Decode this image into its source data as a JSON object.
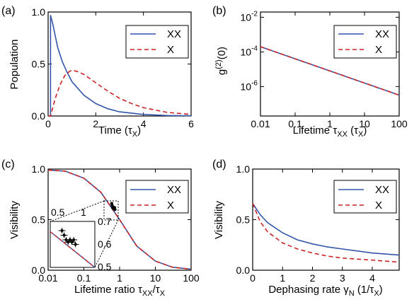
{
  "colors": {
    "xx": "#3355aa",
    "x": "#cc2222"
  },
  "chart_data": [
    {
      "panel": "(a)",
      "type": "line",
      "xlabel": "Time (τ_X)",
      "ylabel": "Population",
      "xlim": [
        0,
        6
      ],
      "ylim": [
        0,
        1
      ],
      "xticks": [
        "0",
        "2",
        "4",
        "6"
      ],
      "yticks": [
        "0.0",
        "0.5",
        "1.0"
      ],
      "xscale": "linear",
      "yscale": "linear",
      "legend": "top-right",
      "series": [
        {
          "name": "XX",
          "style": "solid",
          "x": [
            0,
            0.1,
            0.1,
            0.2,
            0.4,
            0.6,
            0.8,
            1.0,
            1.5,
            2.0,
            2.5,
            3.0,
            4.0,
            5.0,
            6.0
          ],
          "y": [
            0,
            0,
            0.97,
            0.88,
            0.66,
            0.52,
            0.42,
            0.33,
            0.2,
            0.12,
            0.07,
            0.04,
            0.015,
            0.005,
            0.002
          ]
        },
        {
          "name": "X",
          "style": "dashed",
          "x": [
            0,
            0.1,
            0.3,
            0.5,
            0.7,
            0.9,
            1.0,
            1.2,
            1.5,
            2.0,
            2.5,
            3.0,
            3.5,
            4.0,
            5.0,
            6.0
          ],
          "y": [
            0,
            0,
            0.17,
            0.3,
            0.39,
            0.43,
            0.44,
            0.43,
            0.4,
            0.32,
            0.24,
            0.17,
            0.12,
            0.08,
            0.035,
            0.015
          ]
        }
      ]
    },
    {
      "panel": "(b)",
      "type": "line",
      "xlabel": "Lifetime τ_XX (τ_X)",
      "ylabel": "g^(2)(0)",
      "xlim": [
        0.01,
        100
      ],
      "ylim": [
        2e-08,
        0.02
      ],
      "xticks": [
        "0.01",
        "0.1",
        "1",
        "10",
        "100"
      ],
      "yticks": [
        "10^-2",
        "10^-4",
        "10^-6"
      ],
      "xscale": "log",
      "yscale": "log",
      "legend": "top-right",
      "series": [
        {
          "name": "XX",
          "style": "solid",
          "x": [
            0.01,
            0.1,
            1,
            10,
            100
          ],
          "y": [
            0.0002,
            4e-05,
            8e-06,
            1.6e-06,
            3.2e-07
          ]
        },
        {
          "name": "X",
          "style": "dashed",
          "x": [
            0.01,
            0.1,
            1,
            10,
            100
          ],
          "y": [
            0.0002,
            4e-05,
            8e-06,
            1.6e-06,
            3.2e-07
          ]
        }
      ]
    },
    {
      "panel": "(c)",
      "type": "line",
      "xlabel": "Lifetime ratio τ_XX/τ_X",
      "ylabel": "Visibility",
      "xlim": [
        0.01,
        100
      ],
      "ylim": [
        0,
        1
      ],
      "xticks": [
        "0.01",
        "0.1",
        "1",
        "10",
        "100"
      ],
      "yticks": [
        "0.0",
        "0.5",
        "1.0"
      ],
      "xscale": "log",
      "yscale": "linear",
      "legend": "top-right",
      "series": [
        {
          "name": "XX",
          "style": "solid",
          "x": [
            0.01,
            0.03,
            0.1,
            0.3,
            1,
            3,
            10,
            30,
            100
          ],
          "y": [
            0.99,
            0.98,
            0.91,
            0.77,
            0.5,
            0.24,
            0.09,
            0.03,
            0.01
          ]
        },
        {
          "name": "X",
          "style": "dashed",
          "x": [
            0.01,
            0.03,
            0.1,
            0.3,
            1,
            3,
            10,
            30,
            100
          ],
          "y": [
            0.99,
            0.98,
            0.91,
            0.77,
            0.5,
            0.24,
            0.09,
            0.03,
            0.01
          ]
        }
      ],
      "inset": {
        "xlim": [
          0.5,
          1
        ],
        "ylim": [
          0.5,
          0.7
        ],
        "xticks": [
          "0.5",
          "1"
        ],
        "yticks": [
          "0.5",
          "0.6",
          "0.7"
        ],
        "points": [
          {
            "x": 0.6,
            "y": 0.66
          },
          {
            "x": 0.62,
            "y": 0.64
          },
          {
            "x": 0.64,
            "y": 0.62
          },
          {
            "x": 0.66,
            "y": 0.61
          },
          {
            "x": 0.68,
            "y": 0.62
          },
          {
            "x": 0.7,
            "y": 0.61
          },
          {
            "x": 0.72,
            "y": 0.62
          },
          {
            "x": 0.74,
            "y": 0.6
          }
        ]
      }
    },
    {
      "panel": "(d)",
      "type": "line",
      "xlabel": "Dephasing rate γ_N (1/τ_X)",
      "ylabel": "Visibility",
      "xlim": [
        0,
        4.9
      ],
      "ylim": [
        0,
        1
      ],
      "xticks": [
        "0",
        "1",
        "2",
        "3",
        "4"
      ],
      "yticks": [
        "0.0",
        "0.5",
        "1.0"
      ],
      "xscale": "linear",
      "yscale": "linear",
      "legend": "top-right",
      "series": [
        {
          "name": "XX",
          "style": "solid",
          "x": [
            0,
            0.25,
            0.5,
            1,
            1.5,
            2,
            2.5,
            3,
            3.5,
            4,
            4.9
          ],
          "y": [
            0.66,
            0.55,
            0.47,
            0.37,
            0.3,
            0.26,
            0.23,
            0.21,
            0.19,
            0.17,
            0.15
          ]
        },
        {
          "name": "X",
          "style": "dashed",
          "x": [
            0,
            0.25,
            0.5,
            1,
            1.5,
            2,
            2.5,
            3,
            3.5,
            4,
            4.9
          ],
          "y": [
            0.66,
            0.48,
            0.38,
            0.27,
            0.21,
            0.17,
            0.14,
            0.12,
            0.11,
            0.1,
            0.08
          ]
        }
      ]
    }
  ]
}
